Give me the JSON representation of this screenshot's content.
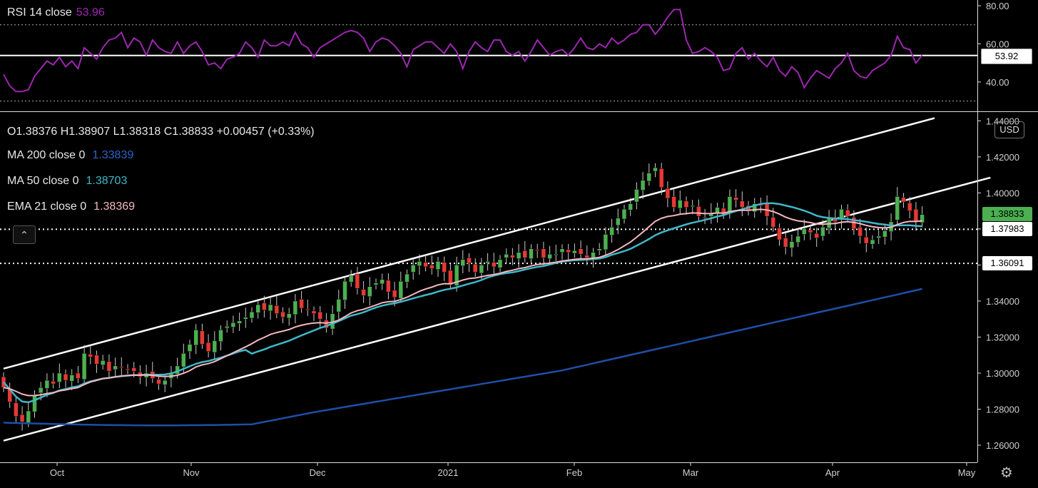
{
  "chart_data": [
    {
      "type": "line",
      "title": "RSI 14 close",
      "title_value": "53.96",
      "y_ticks": [
        "80.00",
        "60.00",
        "40.00"
      ],
      "ylim": [
        25,
        83
      ],
      "levels_dotted": [
        70,
        30
      ],
      "level_solid": 53.92,
      "level_solid_label": "53.92",
      "color": "#9c27b0",
      "values": [
        44,
        38,
        35,
        35,
        36,
        43,
        47,
        51,
        49,
        53,
        48,
        51,
        47,
        58,
        55,
        52,
        58,
        62,
        63,
        66,
        58,
        63,
        61,
        54,
        62,
        58,
        56,
        55,
        61,
        55,
        59,
        61,
        56,
        49,
        50,
        47,
        52,
        53,
        55,
        61,
        58,
        53,
        62,
        59,
        59,
        61,
        59,
        66,
        60,
        58,
        53,
        58,
        60,
        62,
        64,
        66,
        67,
        66,
        63,
        56,
        61,
        63,
        62,
        59,
        55,
        48,
        57,
        59,
        61,
        61,
        58,
        55,
        60,
        56,
        47,
        56,
        61,
        58,
        56,
        62,
        62,
        56,
        54,
        56,
        51,
        56,
        62,
        58,
        54,
        56,
        57,
        54,
        58,
        63,
        58,
        57,
        60,
        58,
        63,
        60,
        62,
        65,
        66,
        70,
        70,
        65,
        69,
        74,
        78,
        78,
        62,
        55,
        56,
        58,
        56,
        53,
        46,
        47,
        55,
        58,
        52,
        55,
        51,
        48,
        53,
        46,
        43,
        48,
        45,
        37,
        42,
        46,
        44,
        42,
        47,
        50,
        55,
        46,
        43,
        42,
        46,
        48,
        50,
        54,
        64,
        58,
        57,
        50,
        54
      ]
    },
    {
      "type": "candlestick",
      "ohlc_label": "O1.38376  H1.38907  L1.38318  C1.38833  +0.00457 (+0.33%)",
      "currency": "USD",
      "x_ticks": [
        "Oct",
        "Nov",
        "Dec",
        "2021",
        "Feb",
        "Mar",
        "Apr",
        "May"
      ],
      "y_ticks": [
        "1.44000",
        "1.42000",
        "1.40000",
        "1.38000",
        "1.36000",
        "1.34000",
        "1.32000",
        "1.30000",
        "1.28000",
        "1.26000"
      ],
      "ylim": [
        1.2505,
        1.4445
      ],
      "last_price": 1.38833,
      "last_price_label": "1.38833",
      "horizontal_levels": [
        {
          "value": 1.37983,
          "label": "1.37983"
        },
        {
          "value": 1.36091,
          "label": "1.36091"
        }
      ],
      "channel_lines": [
        {
          "x": [
            0,
            150
          ],
          "y": [
            1.3025,
            1.4415
          ]
        },
        {
          "x": [
            0,
            159
          ],
          "y": [
            1.2625,
            1.4085
          ]
        }
      ],
      "indicators": [
        {
          "name": "MA 200 close 0",
          "value": "1.33839",
          "color": "#1e4fa8"
        },
        {
          "name": "MA 50 close 0",
          "value": "1.38703",
          "color": "#3fb8c9"
        },
        {
          "name": "EMA 21 close 0",
          "value": "1.38369",
          "color": "#f4b7c0"
        }
      ],
      "colors": {
        "up": "#4caf50",
        "down": "#e53935",
        "wick": "#cccccc"
      }
    }
  ]
}
